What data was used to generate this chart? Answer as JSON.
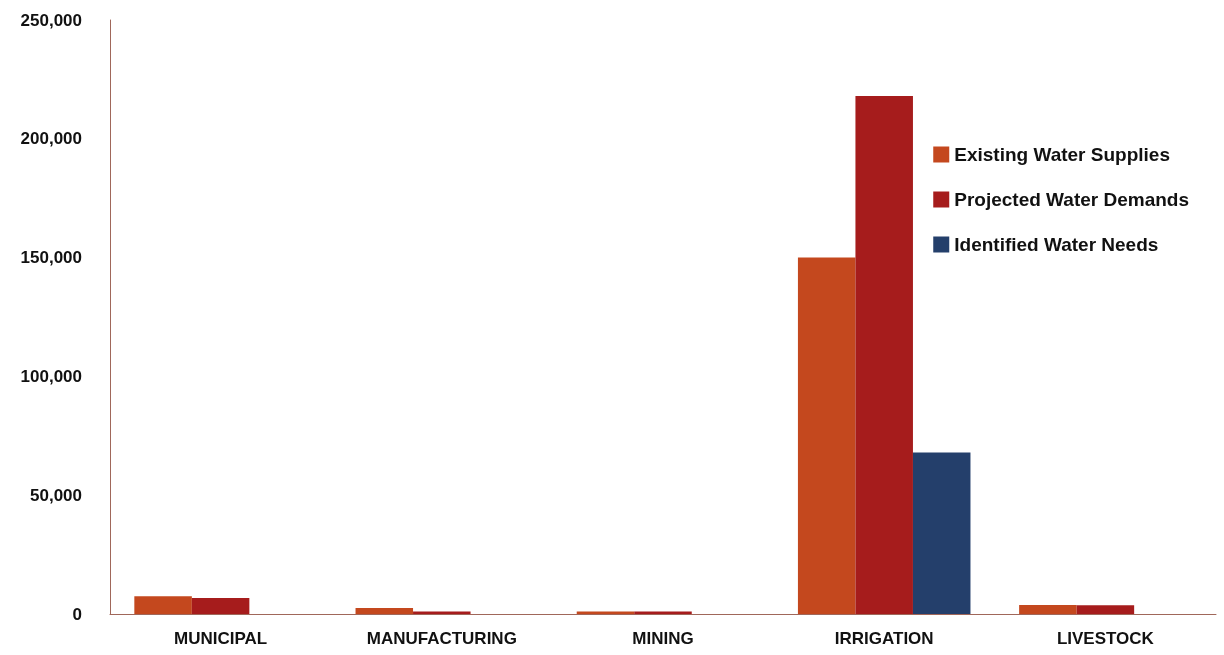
{
  "chart_data": {
    "type": "bar",
    "categories": [
      "MUNICIPAL",
      "MANUFACTURING",
      "MINING",
      "IRRIGATION",
      "LIVESTOCK"
    ],
    "series": [
      {
        "name": "Existing Water Supplies",
        "color": "#c4481e",
        "values": [
          7500,
          2500,
          1000,
          150000,
          3800
        ]
      },
      {
        "name": "Projected Water Demands",
        "color": "#a61c1c",
        "values": [
          6700,
          1000,
          1000,
          218000,
          3700
        ]
      },
      {
        "name": "Identified Water Needs",
        "color": "#243f6b",
        "values": [
          0,
          0,
          0,
          68000,
          0
        ]
      }
    ],
    "ylim": [
      0,
      250000
    ],
    "yticks": [
      0,
      {
        "value": 50000,
        "label": "50,000"
      },
      {
        "value": 100000,
        "label": "100,000"
      },
      {
        "value": 150000,
        "label": "150,000"
      },
      {
        "value": 200000,
        "label": "200,000"
      },
      {
        "value": 250000,
        "label": "250,000"
      }
    ],
    "grid": false,
    "legend": "right"
  }
}
